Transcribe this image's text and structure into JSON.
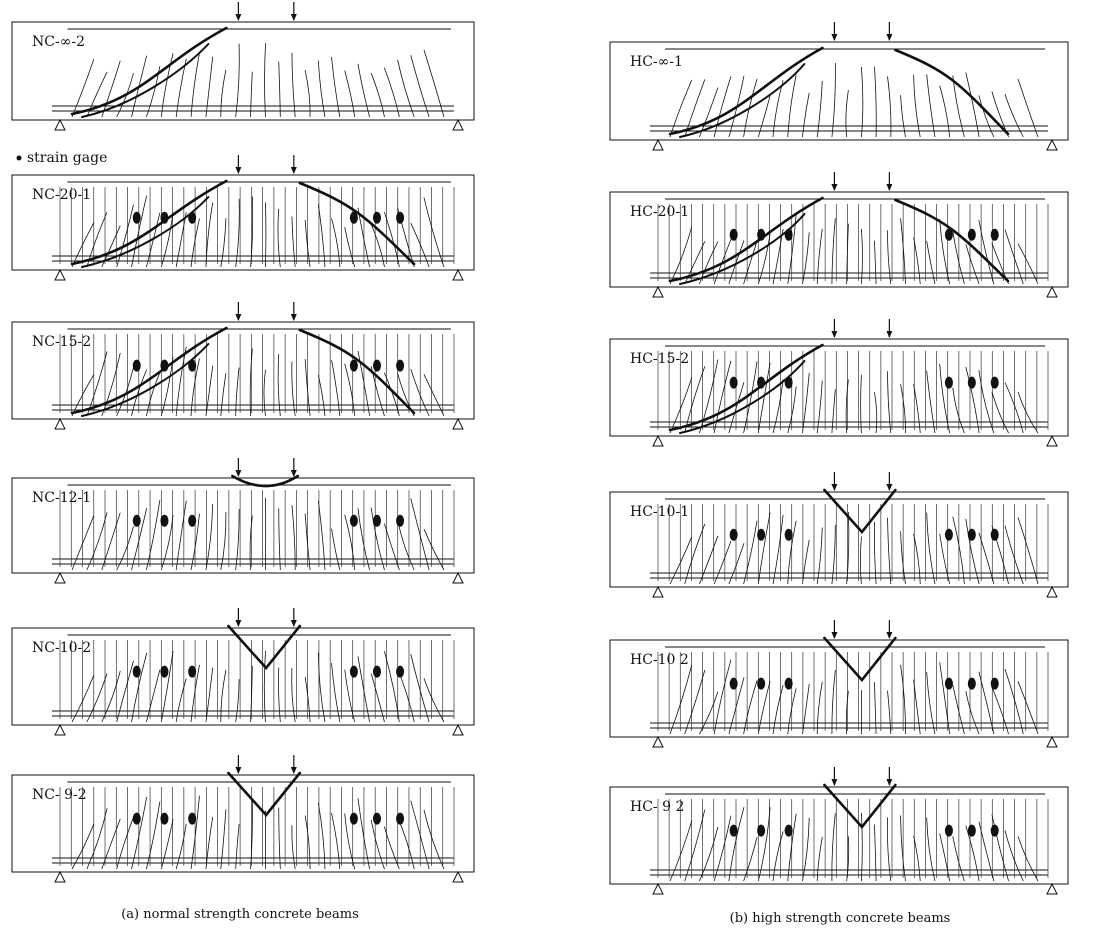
{
  "legend": {
    "strain_gage": "strain gage"
  },
  "captions": {
    "left": "(a) normal strength concrete beams",
    "right": "(b) high strength concrete beams"
  },
  "beams": [
    {
      "label": "NC-∞-2",
      "col": 0,
      "row": 0,
      "stirrups": false,
      "gages": false,
      "failure": "shear-left"
    },
    {
      "label": "NC-20-1",
      "col": 0,
      "row": 1,
      "stirrups": true,
      "gages": true,
      "failure": "shear-both"
    },
    {
      "label": "NC-15-2",
      "col": 0,
      "row": 2,
      "stirrups": true,
      "gages": true,
      "failure": "shear-both"
    },
    {
      "label": "NC-12-1",
      "col": 0,
      "row": 3,
      "stirrups": true,
      "gages": true,
      "failure": "crush-u"
    },
    {
      "label": "NC-10-2",
      "col": 0,
      "row": 4,
      "stirrups": true,
      "gages": true,
      "failure": "crush-v"
    },
    {
      "label": "NC- 9-2",
      "col": 0,
      "row": 5,
      "stirrups": true,
      "gages": true,
      "failure": "crush-v"
    },
    {
      "label": "HC-∞-1",
      "col": 1,
      "row": 0,
      "stirrups": false,
      "gages": false,
      "failure": "arch"
    },
    {
      "label": "HC-20-1",
      "col": 1,
      "row": 1,
      "stirrups": true,
      "gages": true,
      "failure": "shear-both"
    },
    {
      "label": "HC-15-2",
      "col": 1,
      "row": 2,
      "stirrups": true,
      "gages": true,
      "failure": "shear-left"
    },
    {
      "label": "HC-10-1",
      "col": 1,
      "row": 3,
      "stirrups": true,
      "gages": true,
      "failure": "crush-v"
    },
    {
      "label": "HC-10 2",
      "col": 1,
      "row": 4,
      "stirrups": true,
      "gages": true,
      "failure": "crush-v"
    },
    {
      "label": "HC- 9 2",
      "col": 1,
      "row": 5,
      "stirrups": true,
      "gages": true,
      "failure": "crush-v"
    }
  ]
}
